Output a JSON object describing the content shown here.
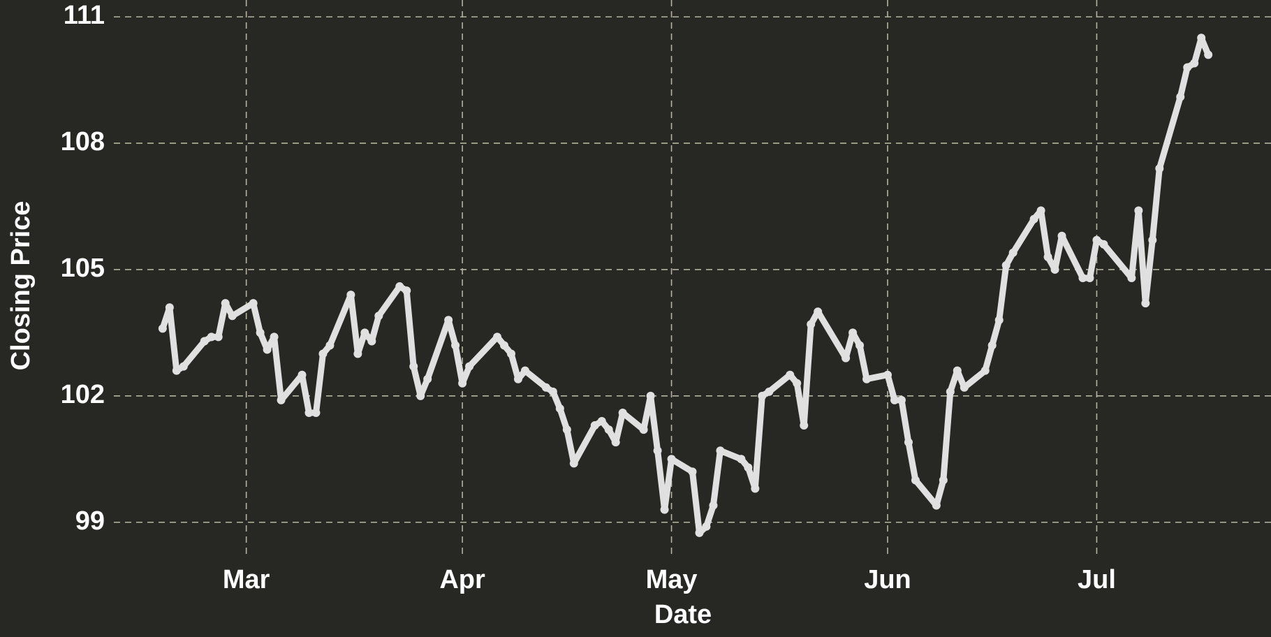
{
  "chart_data": {
    "type": "line",
    "xlabel": "Date",
    "ylabel": "Closing Price",
    "color": "#e0e0e0",
    "x": [
      48,
      49,
      50,
      51,
      54,
      55,
      56,
      57,
      58,
      61,
      62,
      63,
      64,
      65,
      68,
      69,
      70,
      71,
      72,
      75,
      76,
      77,
      78,
      79,
      82,
      83,
      84,
      85,
      86,
      89,
      90,
      91,
      92,
      96,
      97,
      98,
      99,
      100,
      103,
      104,
      105,
      106,
      107,
      110,
      111,
      112,
      113,
      114,
      117,
      118,
      119,
      120,
      121,
      124,
      125,
      126,
      127,
      128,
      131,
      132,
      133,
      134,
      135,
      138,
      139,
      140,
      141,
      142,
      146,
      147,
      148,
      149,
      152,
      153,
      154,
      155,
      156,
      159,
      160,
      161,
      162,
      163,
      166,
      167,
      168,
      169,
      170,
      173,
      174,
      175,
      176,
      177,
      180,
      181,
      182,
      183,
      187,
      188,
      189,
      190,
      191,
      194,
      195,
      196,
      197,
      198
    ],
    "values": [
      103.6,
      104.1,
      102.6,
      102.7,
      103.3,
      103.4,
      103.4,
      104.2,
      103.9,
      104.2,
      103.5,
      103.1,
      103.4,
      101.9,
      102.5,
      101.6,
      101.6,
      103.0,
      103.2,
      104.4,
      103.0,
      103.5,
      103.3,
      103.9,
      104.6,
      104.5,
      102.7,
      102.0,
      102.4,
      103.8,
      103.2,
      102.3,
      102.7,
      103.4,
      103.2,
      103.0,
      102.4,
      102.6,
      102.2,
      102.1,
      101.7,
      101.2,
      100.4,
      101.3,
      101.4,
      101.2,
      100.9,
      101.6,
      101.2,
      102.0,
      100.7,
      99.3,
      100.5,
      100.2,
      98.75,
      98.9,
      99.4,
      100.7,
      100.5,
      100.3,
      99.8,
      102.0,
      102.1,
      102.5,
      102.3,
      101.3,
      103.7,
      104.0,
      102.9,
      103.5,
      103.2,
      102.4,
      102.5,
      101.9,
      101.9,
      100.9,
      100.0,
      99.4,
      100.0,
      102.1,
      102.6,
      102.2,
      102.6,
      103.2,
      103.8,
      105.1,
      105.4,
      106.2,
      106.4,
      105.3,
      105.0,
      105.8,
      104.8,
      104.8,
      105.7,
      105.6,
      104.8,
      106.4,
      104.2,
      105.7,
      107.4,
      109.1,
      109.8,
      109.9,
      110.5,
      110.1
    ],
    "xlim": [
      41,
      207
    ],
    "xticks": [
      {
        "value": 60,
        "label": "Mar"
      },
      {
        "value": 91,
        "label": "Apr"
      },
      {
        "value": 121,
        "label": "May"
      },
      {
        "value": 152,
        "label": "Jun"
      },
      {
        "value": 182,
        "label": "Jul"
      }
    ],
    "ylim": [
      98.2,
      111.4
    ],
    "yticks": [
      99,
      102,
      105,
      108,
      111
    ],
    "grid": true
  }
}
